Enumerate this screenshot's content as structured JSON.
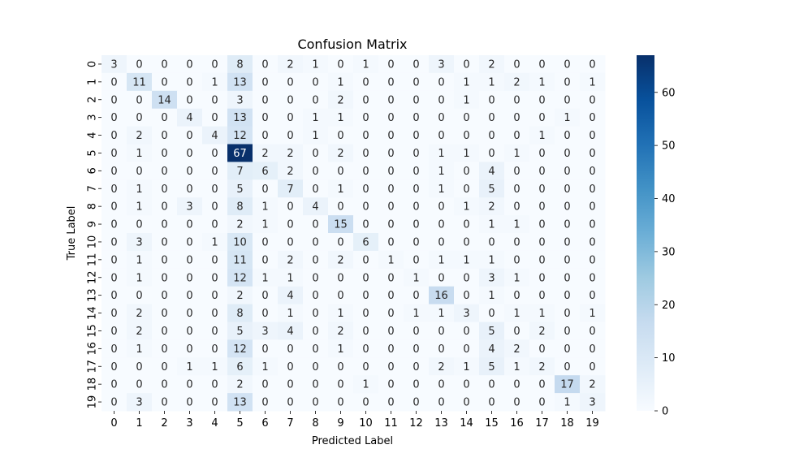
{
  "chart_data": {
    "type": "heatmap",
    "title": "Confusion Matrix",
    "xlabel": "Predicted Label",
    "ylabel": "True Label",
    "x_labels": [
      "0",
      "1",
      "2",
      "3",
      "4",
      "5",
      "6",
      "7",
      "8",
      "9",
      "10",
      "11",
      "12",
      "13",
      "14",
      "15",
      "16",
      "17",
      "18",
      "19"
    ],
    "y_labels": [
      "0",
      "1",
      "2",
      "3",
      "4",
      "5",
      "6",
      "7",
      "8",
      "9",
      "10",
      "11",
      "12",
      "13",
      "14",
      "15",
      "16",
      "17",
      "18",
      "19"
    ],
    "values": [
      [
        3,
        0,
        0,
        0,
        0,
        8,
        0,
        2,
        1,
        0,
        1,
        0,
        0,
        3,
        0,
        2,
        0,
        0,
        0,
        0
      ],
      [
        0,
        11,
        0,
        0,
        1,
        13,
        0,
        0,
        0,
        1,
        0,
        0,
        0,
        0,
        1,
        1,
        2,
        1,
        0,
        1
      ],
      [
        0,
        0,
        14,
        0,
        0,
        3,
        0,
        0,
        0,
        2,
        0,
        0,
        0,
        0,
        1,
        0,
        0,
        0,
        0,
        0
      ],
      [
        0,
        0,
        0,
        4,
        0,
        13,
        0,
        0,
        1,
        1,
        0,
        0,
        0,
        0,
        0,
        0,
        0,
        0,
        1,
        0
      ],
      [
        0,
        2,
        0,
        0,
        4,
        12,
        0,
        0,
        1,
        0,
        0,
        0,
        0,
        0,
        0,
        0,
        0,
        1,
        0,
        0
      ],
      [
        0,
        1,
        0,
        0,
        0,
        67,
        2,
        2,
        0,
        2,
        0,
        0,
        0,
        1,
        1,
        0,
        1,
        0,
        0,
        0
      ],
      [
        0,
        0,
        0,
        0,
        0,
        7,
        6,
        2,
        0,
        0,
        0,
        0,
        0,
        1,
        0,
        4,
        0,
        0,
        0,
        0
      ],
      [
        0,
        1,
        0,
        0,
        0,
        5,
        0,
        7,
        0,
        1,
        0,
        0,
        0,
        1,
        0,
        5,
        0,
        0,
        0,
        0
      ],
      [
        0,
        1,
        0,
        3,
        0,
        8,
        1,
        0,
        4,
        0,
        0,
        0,
        0,
        0,
        1,
        2,
        0,
        0,
        0,
        0
      ],
      [
        0,
        0,
        0,
        0,
        0,
        2,
        1,
        0,
        0,
        15,
        0,
        0,
        0,
        0,
        0,
        1,
        1,
        0,
        0,
        0
      ],
      [
        0,
        3,
        0,
        0,
        1,
        10,
        0,
        0,
        0,
        0,
        6,
        0,
        0,
        0,
        0,
        0,
        0,
        0,
        0,
        0
      ],
      [
        0,
        1,
        0,
        0,
        0,
        11,
        0,
        2,
        0,
        2,
        0,
        1,
        0,
        1,
        1,
        1,
        0,
        0,
        0,
        0
      ],
      [
        0,
        1,
        0,
        0,
        0,
        12,
        1,
        1,
        0,
        0,
        0,
        0,
        1,
        0,
        0,
        3,
        1,
        0,
        0,
        0
      ],
      [
        0,
        0,
        0,
        0,
        0,
        2,
        0,
        4,
        0,
        0,
        0,
        0,
        0,
        16,
        0,
        1,
        0,
        0,
        0,
        0
      ],
      [
        0,
        2,
        0,
        0,
        0,
        8,
        0,
        1,
        0,
        1,
        0,
        0,
        1,
        1,
        3,
        0,
        1,
        1,
        0,
        1
      ],
      [
        0,
        2,
        0,
        0,
        0,
        5,
        3,
        4,
        0,
        2,
        0,
        0,
        0,
        0,
        0,
        5,
        0,
        2,
        0,
        0
      ],
      [
        0,
        1,
        0,
        0,
        0,
        12,
        0,
        0,
        0,
        1,
        0,
        0,
        0,
        0,
        0,
        4,
        2,
        0,
        0,
        0
      ],
      [
        0,
        0,
        0,
        1,
        1,
        6,
        1,
        0,
        0,
        0,
        0,
        0,
        0,
        2,
        1,
        5,
        1,
        2,
        0,
        0
      ],
      [
        0,
        0,
        0,
        0,
        0,
        2,
        0,
        0,
        0,
        0,
        1,
        0,
        0,
        0,
        0,
        0,
        0,
        0,
        17,
        2
      ],
      [
        0,
        3,
        0,
        0,
        0,
        13,
        0,
        0,
        0,
        0,
        0,
        0,
        0,
        0,
        0,
        0,
        0,
        0,
        1,
        3
      ]
    ],
    "vmin": 0,
    "vmax": 67,
    "colormap": "Blues",
    "colorbar_ticks": [
      0,
      10,
      20,
      30,
      40,
      50,
      60
    ],
    "annotated": true,
    "grid": false
  }
}
